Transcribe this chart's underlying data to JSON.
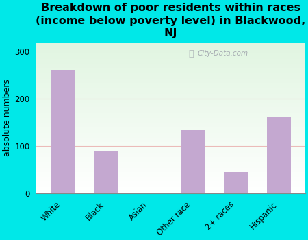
{
  "title": "Breakdown of poor residents within races\n(income below poverty level) in Blackwood,\nNJ",
  "categories": [
    "White",
    "Black",
    "Asian",
    "Other race",
    "2+ races",
    "Hispanic"
  ],
  "values": [
    262,
    90,
    0,
    135,
    45,
    163
  ],
  "bar_color": "#c4a8d0",
  "ylabel": "absolute numbers",
  "ylim": [
    0,
    320
  ],
  "yticks": [
    0,
    100,
    200,
    300
  ],
  "background_color": "#00e8e8",
  "watermark": "City-Data.com",
  "title_fontsize": 11.5,
  "ylabel_fontsize": 9,
  "tick_fontsize": 8.5
}
